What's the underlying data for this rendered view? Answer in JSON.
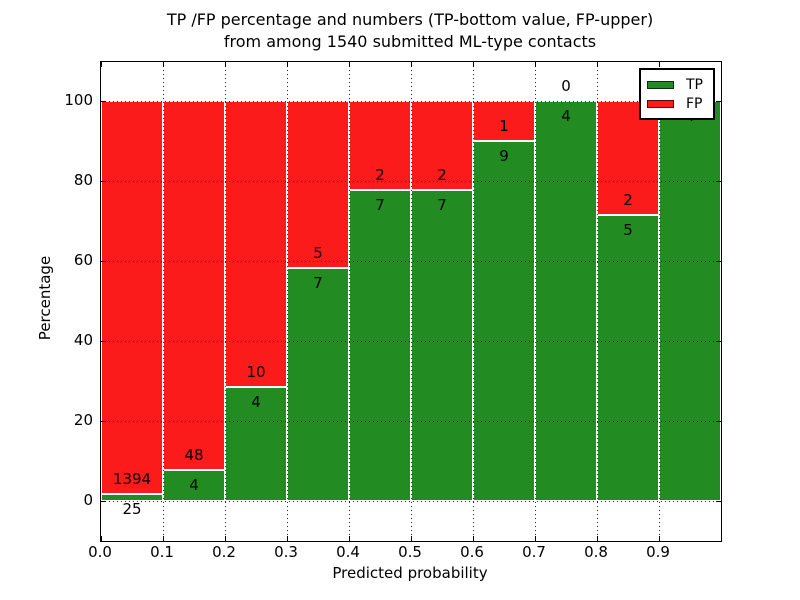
{
  "figure": {
    "title_line1": "TP /FP percentage and numbers (TP-bottom value, FP-upper)",
    "title_line2": "from among 1540 submitted ML-type contacts"
  },
  "chart_data": {
    "type": "bar",
    "stacked": true,
    "bar_mode": "percent-stacked",
    "title": "TP /FP percentage and numbers (TP-bottom value, FP-upper) from among 1540 submitted ML-type contacts",
    "xlabel": "Predicted probability",
    "ylabel": "Percentage",
    "total_contacts": 1540,
    "bin_edges": [
      0.0,
      0.1,
      0.2,
      0.3,
      0.4,
      0.5,
      0.6,
      0.7,
      0.8,
      0.9,
      1.0
    ],
    "x_tick_labels": [
      "0.0",
      "0.1",
      "0.2",
      "0.3",
      "0.4",
      "0.5",
      "0.6",
      "0.7",
      "0.8",
      "0.9"
    ],
    "y_ticks": [
      0,
      20,
      40,
      60,
      80,
      100
    ],
    "xlim": [
      0,
      1
    ],
    "ylim": [
      -10,
      109.75
    ],
    "grid": {
      "visible": true,
      "style": "dotted",
      "color": "#000000"
    },
    "series": [
      {
        "name": "TP",
        "color": "#228B22",
        "counts": [
          25,
          4,
          4,
          7,
          7,
          7,
          9,
          4,
          5,
          4
        ],
        "labels": [
          "25",
          "4",
          "4",
          "7",
          "7",
          "7",
          "9",
          "4",
          "5",
          "4"
        ]
      },
      {
        "name": "FP",
        "color": "#FB1B1B",
        "counts": [
          1394,
          48,
          10,
          5,
          2,
          2,
          1,
          0,
          2,
          0
        ],
        "labels": [
          "1394",
          "48",
          "10",
          "5",
          "2",
          "2",
          "1",
          "0",
          "2",
          ""
        ]
      }
    ],
    "tp_percent": [
      1.76,
      7.69,
      28.57,
      58.33,
      77.78,
      77.78,
      90.0,
      100.0,
      71.43,
      100.0
    ],
    "legend": {
      "position": "upper-right",
      "entries": [
        {
          "label": "TP",
          "color": "#228B22"
        },
        {
          "label": "FP",
          "color": "#FB1B1B"
        }
      ]
    }
  }
}
